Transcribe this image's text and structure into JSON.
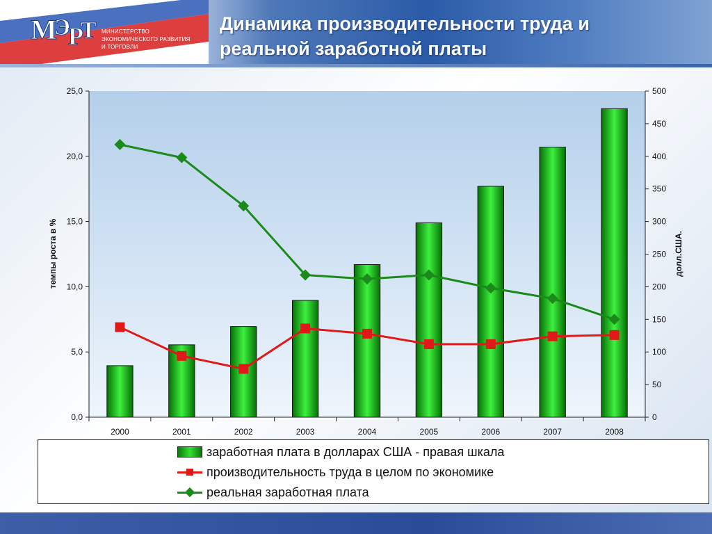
{
  "header": {
    "title_line1": "Динамика производительности труда и",
    "title_line2": "реальной заработной платы",
    "logo_text": "МЭРТ",
    "ministry_line1": "МИНИСТЕРСТВО",
    "ministry_line2": "ЭКОНОМИЧЕСКОГО РАЗВИТИЯ",
    "ministry_line3": "И ТОРГОВЛИ"
  },
  "colors": {
    "bar": "#22c422",
    "productivity_line": "#e01818",
    "real_wage_line": "#1a8a1a",
    "plot_bg": "#c6dcf0"
  },
  "chart_data": {
    "type": "bar",
    "categories": [
      "2000",
      "2001",
      "2002",
      "2003",
      "2004",
      "2005",
      "2006",
      "2007",
      "2008"
    ],
    "title": "",
    "ylabel": "темпы роста в  %",
    "y2label": "долл.США.",
    "ylim": [
      0,
      25
    ],
    "y2lim": [
      0,
      500
    ],
    "y_ticks": [
      "0,0",
      "5,0",
      "10,0",
      "15,0",
      "20,0",
      "25,0"
    ],
    "y2_ticks": [
      "0",
      "50",
      "100",
      "150",
      "200",
      "250",
      "300",
      "350",
      "400",
      "450",
      "500"
    ],
    "grid": false,
    "legend_position": "bottom",
    "series": [
      {
        "name": "заработная плата в долларах США - правая шкала",
        "type": "bar",
        "axis": "right",
        "values": [
          79,
          111,
          139,
          179,
          234,
          298,
          354,
          414,
          473
        ]
      },
      {
        "name": "производительность труда в целом по экономике",
        "type": "line",
        "marker": "square",
        "axis": "left",
        "values": [
          6.9,
          4.7,
          3.7,
          6.8,
          6.4,
          5.6,
          5.6,
          6.2,
          6.3
        ]
      },
      {
        "name": "реальная заработная плата",
        "type": "line",
        "marker": "diamond",
        "axis": "left",
        "values": [
          20.9,
          19.9,
          16.2,
          10.9,
          10.6,
          10.9,
          9.9,
          9.1,
          7.5
        ]
      }
    ]
  }
}
